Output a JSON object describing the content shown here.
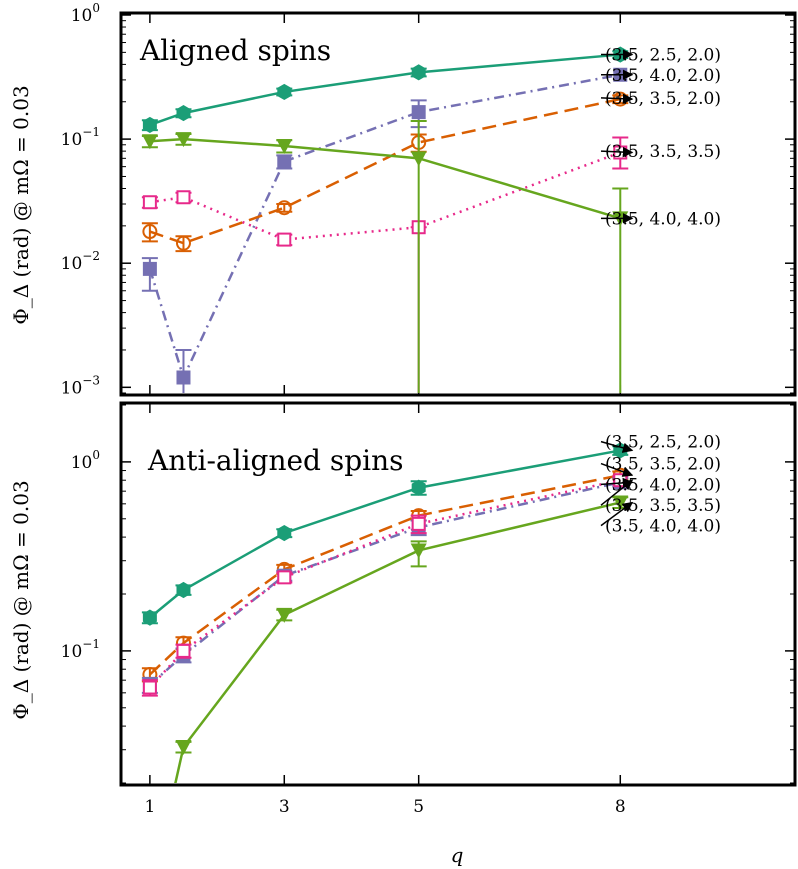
{
  "chart_data": [
    {
      "type": "line",
      "title": "Aligned spins",
      "ylabel": "Φ_Δ (rad) @ mΩ = 0.03",
      "y_scale": "log",
      "ylim": [
        0.0009,
        1.0
      ],
      "xlim": [
        0.6,
        10.6
      ],
      "x_ticks": [
        "1",
        "3",
        "5",
        "8"
      ],
      "y_ticks": [
        {
          "value": 0.001,
          "base": "10",
          "exp": "−3"
        },
        {
          "value": 0.01,
          "base": "10",
          "exp": "−2"
        },
        {
          "value": 0.1,
          "base": "10",
          "exp": "−1"
        },
        {
          "value": 1,
          "base": "10",
          "exp": "0"
        }
      ],
      "series": [
        {
          "name": "(3.5, 2.5, 2.0)",
          "color": "#1b9e77",
          "marker": "hexagon",
          "line": "solid",
          "x": [
            1,
            1.5,
            3,
            5,
            8
          ],
          "y": [
            0.13,
            0.162,
            0.24,
            0.345,
            0.48
          ],
          "err_low": [
            0.012,
            0.012,
            0.015,
            0.025,
            0.03
          ],
          "err_high": [
            0.012,
            0.012,
            0.015,
            0.025,
            0.03
          ],
          "label_y": 0.48
        },
        {
          "name": "(3.5, 4.0, 2.0)",
          "color": "#7570b3",
          "marker": "square",
          "line": "dashdot",
          "x": [
            1,
            1.5,
            3,
            5,
            8
          ],
          "y": [
            0.009,
            0.0012,
            0.066,
            0.165,
            0.33
          ],
          "err_low": [
            0.003,
            0.0004,
            0.008,
            0.04,
            0.0
          ],
          "err_high": [
            0.002,
            0.0008,
            0.008,
            0.04,
            0.0
          ],
          "label_y": 0.33
        },
        {
          "name": "(3.5, 3.5, 2.0)",
          "color": "#d95f02",
          "marker": "circle-open",
          "line": "dashed",
          "x": [
            1,
            1.5,
            3,
            5,
            8
          ],
          "y": [
            0.018,
            0.0145,
            0.028,
            0.094,
            0.21
          ],
          "err_low": [
            0.003,
            0.002,
            0.002,
            0.015,
            0.015
          ],
          "err_high": [
            0.003,
            0.002,
            0.002,
            0.015,
            0.015
          ],
          "label_y": 0.215
        },
        {
          "name": "(3.5, 3.5, 3.5)",
          "color": "#e7298a",
          "marker": "square-open",
          "line": "dotted",
          "x": [
            1,
            1.5,
            3,
            5,
            8
          ],
          "y": [
            0.031,
            0.034,
            0.0155,
            0.0195,
            0.078
          ],
          "err_low": [
            0.003,
            0.003,
            0.0015,
            0.0194,
            0.02
          ],
          "err_high": [
            0.003,
            0.003,
            0.0015,
            0.0,
            0.025
          ],
          "label_y": 0.08
        },
        {
          "name": "(3.5, 4.0, 4.0)",
          "color": "#66a61e",
          "marker": "triangle-down",
          "line": "solid",
          "x": [
            1,
            1.5,
            3,
            5,
            8
          ],
          "y": [
            0.096,
            0.1,
            0.088,
            0.07,
            0.023
          ],
          "err_low": [
            0.01,
            0.01,
            0.01,
            0.0699,
            0.0229
          ],
          "err_high": [
            0.01,
            0.01,
            0.01,
            0.07,
            0.017
          ],
          "label_y": 0.023
        }
      ]
    },
    {
      "type": "line",
      "title": "Anti-aligned spins",
      "ylabel": "Φ_Δ (rad) @ mΩ = 0.03",
      "xlabel": "q",
      "y_scale": "log",
      "ylim": [
        0.02,
        2.0
      ],
      "xlim": [
        0.6,
        10.6
      ],
      "x_ticks": [
        "1",
        "3",
        "5",
        "8"
      ],
      "y_ticks": [
        {
          "value": 0.1,
          "base": "10",
          "exp": "−1"
        },
        {
          "value": 1,
          "base": "10",
          "exp": "0"
        }
      ],
      "series": [
        {
          "name": "(3.5, 2.5, 2.0)",
          "color": "#1b9e77",
          "marker": "hexagon",
          "line": "solid",
          "x": [
            1,
            1.5,
            3,
            5,
            8
          ],
          "y": [
            0.15,
            0.21,
            0.42,
            0.73,
            1.15
          ],
          "err_low": [
            0.01,
            0.012,
            0.02,
            0.06,
            0.06
          ],
          "err_high": [
            0.01,
            0.012,
            0.02,
            0.06,
            0.06
          ],
          "label_y": 1.28
        },
        {
          "name": "(3.5, 3.5, 2.0)",
          "color": "#d95f02",
          "marker": "circle-open",
          "line": "dashed",
          "x": [
            1,
            1.5,
            3,
            5,
            8
          ],
          "y": [
            0.075,
            0.11,
            0.27,
            0.52,
            0.85
          ],
          "err_low": [
            0.006,
            0.008,
            0.015,
            0.03,
            0.04
          ],
          "err_high": [
            0.006,
            0.008,
            0.015,
            0.03,
            0.04
          ],
          "label_y": 0.98
        },
        {
          "name": "(3.5, 4.0, 2.0)",
          "color": "#7570b3",
          "marker": "square",
          "line": "dashdot",
          "x": [
            1,
            1.5,
            3,
            5,
            8
          ],
          "y": [
            0.066,
            0.095,
            0.25,
            0.45,
            0.78
          ],
          "err_low": [
            0.006,
            0.008,
            0.015,
            0.04,
            0.04
          ],
          "err_high": [
            0.006,
            0.008,
            0.015,
            0.04,
            0.04
          ],
          "label_y": 0.76
        },
        {
          "name": "(3.5, 3.5, 3.5)",
          "color": "#e7298a",
          "marker": "square-open",
          "line": "dotted",
          "x": [
            1,
            1.5,
            3,
            5,
            8
          ],
          "y": [
            0.064,
            0.1,
            0.245,
            0.47,
            0.8
          ],
          "err_low": [
            0.006,
            0.008,
            0.015,
            0.05,
            0.04
          ],
          "err_high": [
            0.006,
            0.008,
            0.015,
            0.05,
            0.04
          ],
          "label_y": 0.59
        },
        {
          "name": "(3.5, 4.0, 4.0)",
          "color": "#66a61e",
          "marker": "triangle-down",
          "line": "solid",
          "x": [
            1,
            1.5,
            3,
            5,
            8
          ],
          "y": [
            0.005,
            0.031,
            0.155,
            0.34,
            0.61
          ],
          "err_low": [
            0.0,
            0.002,
            0.01,
            0.06,
            0.04
          ],
          "err_high": [
            0.0,
            0.002,
            0.01,
            0.04,
            0.04
          ],
          "label_y": 0.46
        }
      ]
    }
  ]
}
